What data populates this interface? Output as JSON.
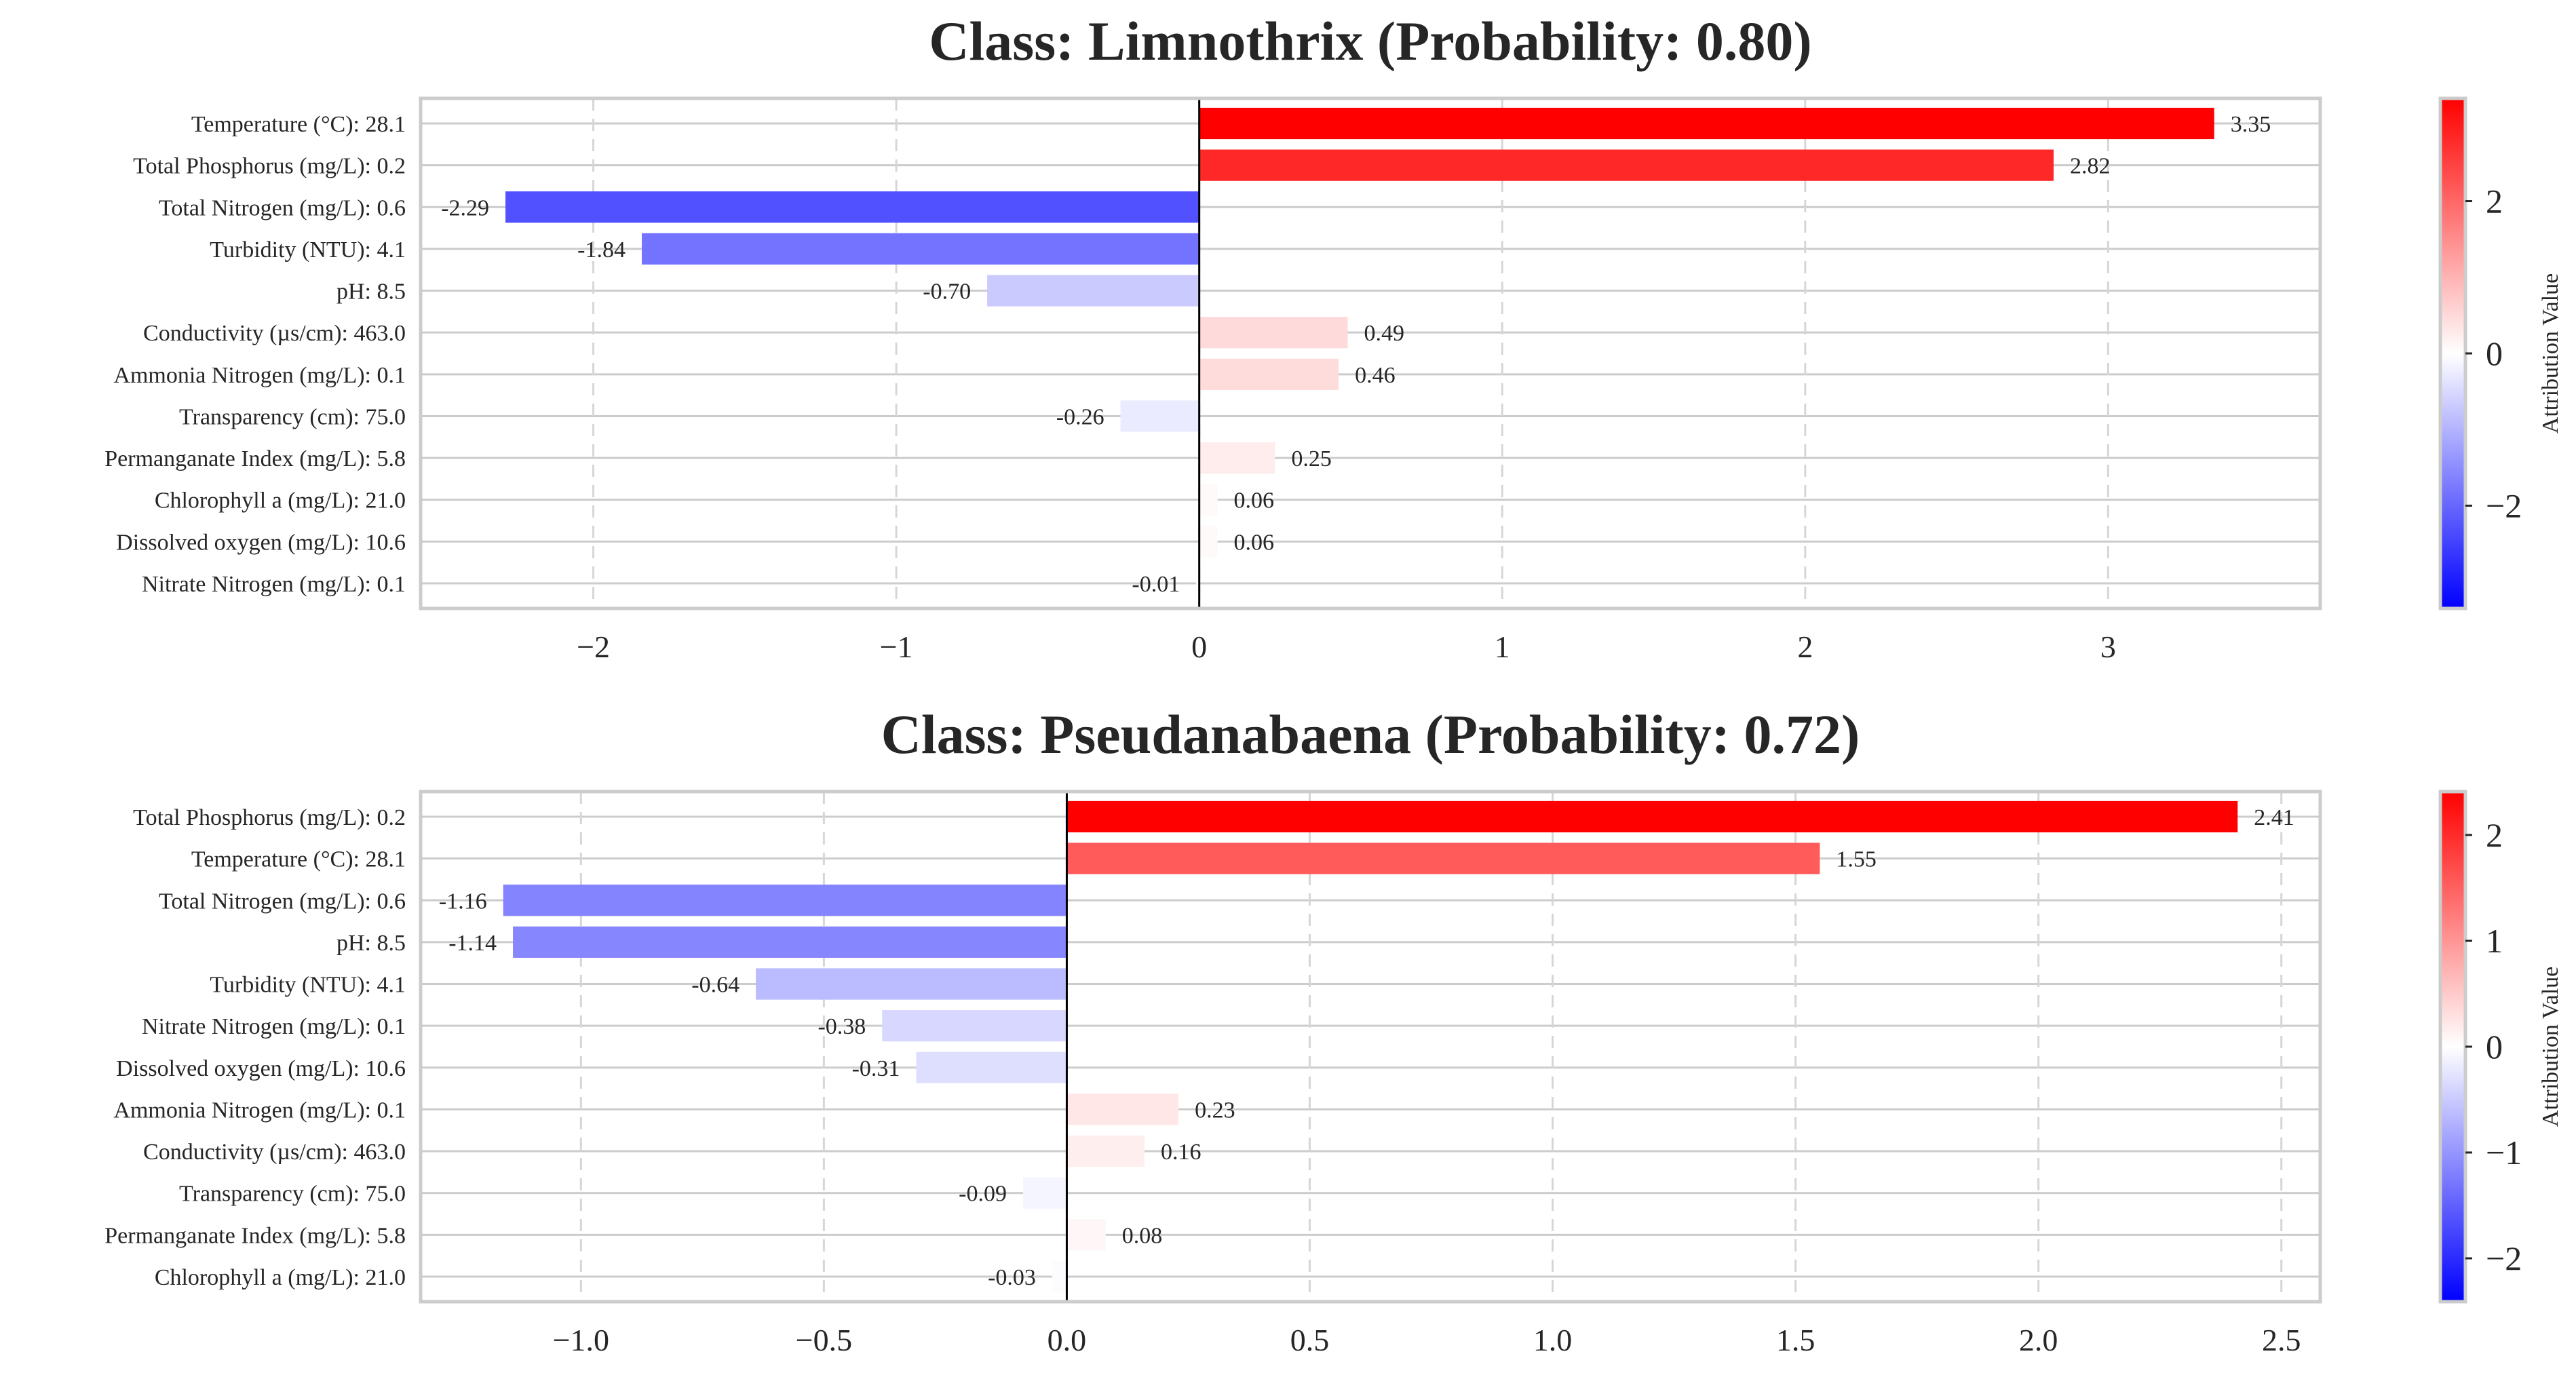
{
  "chart_data": [
    {
      "type": "bar",
      "orientation": "horizontal",
      "title": "Class: Limnothrix (Probability: 0.80)",
      "categories": [
        "Temperature (°C): 28.1",
        "Total Phosphorus (mg/L): 0.2",
        "Total Nitrogen (mg/L): 0.6",
        "Turbidity (NTU): 4.1",
        "pH: 8.5",
        "Conductivity (µs/cm): 463.0",
        "Ammonia Nitrogen (mg/L): 0.1",
        "Transparency (cm): 75.0",
        "Permanganate Index (mg/L): 5.8",
        "Chlorophyll a (mg/L): 21.0",
        "Dissolved oxygen (mg/L): 10.6",
        "Nitrate Nitrogen (mg/L): 0.1"
      ],
      "values": [
        3.35,
        2.82,
        -2.29,
        -1.84,
        -0.7,
        0.49,
        0.46,
        -0.26,
        0.25,
        0.06,
        0.06,
        -0.01
      ],
      "value_labels": [
        "3.35",
        "2.82",
        "-2.29",
        "-1.84",
        "-0.70",
        "0.49",
        "0.46",
        "-0.26",
        "0.25",
        "0.06",
        "0.06",
        "-0.01"
      ],
      "xlim": [
        -2.57,
        3.7
      ],
      "xticks": [
        -2,
        -1,
        0,
        1,
        2,
        3
      ],
      "xtick_labels": [
        "−2",
        "−1",
        "0",
        "1",
        "2",
        "3"
      ],
      "grid": "x-dashed, y-solid",
      "colorbar": {
        "label": "Attribution Value",
        "range": [
          -3.35,
          3.35
        ],
        "ticks": [
          -2,
          0,
          2
        ],
        "tick_labels": [
          "−2",
          "0",
          "2"
        ],
        "colormap": "bwr"
      }
    },
    {
      "type": "bar",
      "orientation": "horizontal",
      "title": "Class: Pseudanabaena (Probability: 0.72)",
      "categories": [
        "Total Phosphorus (mg/L): 0.2",
        "Temperature (°C): 28.1",
        "Total Nitrogen (mg/L): 0.6",
        "pH: 8.5",
        "Turbidity (NTU): 4.1",
        "Nitrate Nitrogen (mg/L): 0.1",
        "Dissolved oxygen (mg/L): 10.6",
        "Ammonia Nitrogen (mg/L): 0.1",
        "Conductivity (µs/cm): 463.0",
        "Transparency (cm): 75.0",
        "Permanganate Index (mg/L): 5.8",
        "Chlorophyll a (mg/L): 21.0"
      ],
      "values": [
        2.41,
        1.55,
        -1.16,
        -1.14,
        -0.64,
        -0.38,
        -0.31,
        0.23,
        0.16,
        -0.09,
        0.08,
        -0.03
      ],
      "value_labels": [
        "2.41",
        "1.55",
        "-1.16",
        "-1.14",
        "-0.64",
        "-0.38",
        "-0.31",
        "0.23",
        "0.16",
        "-0.09",
        "0.08",
        "-0.03"
      ],
      "xlim": [
        -1.33,
        2.58
      ],
      "xticks": [
        -1.0,
        -0.5,
        0.0,
        0.5,
        1.0,
        1.5,
        2.0,
        2.5
      ],
      "xtick_labels": [
        "−1.0",
        "−0.5",
        "0.0",
        "0.5",
        "1.0",
        "1.5",
        "2.0",
        "2.5"
      ],
      "grid": "x-dashed, y-solid",
      "colorbar": {
        "label": "Attribution Value",
        "range": [
          -2.41,
          2.41
        ],
        "ticks": [
          -2,
          -1,
          0,
          1,
          2
        ],
        "tick_labels": [
          "−2",
          "−1",
          "0",
          "1",
          "2"
        ],
        "colormap": "bwr"
      }
    }
  ]
}
